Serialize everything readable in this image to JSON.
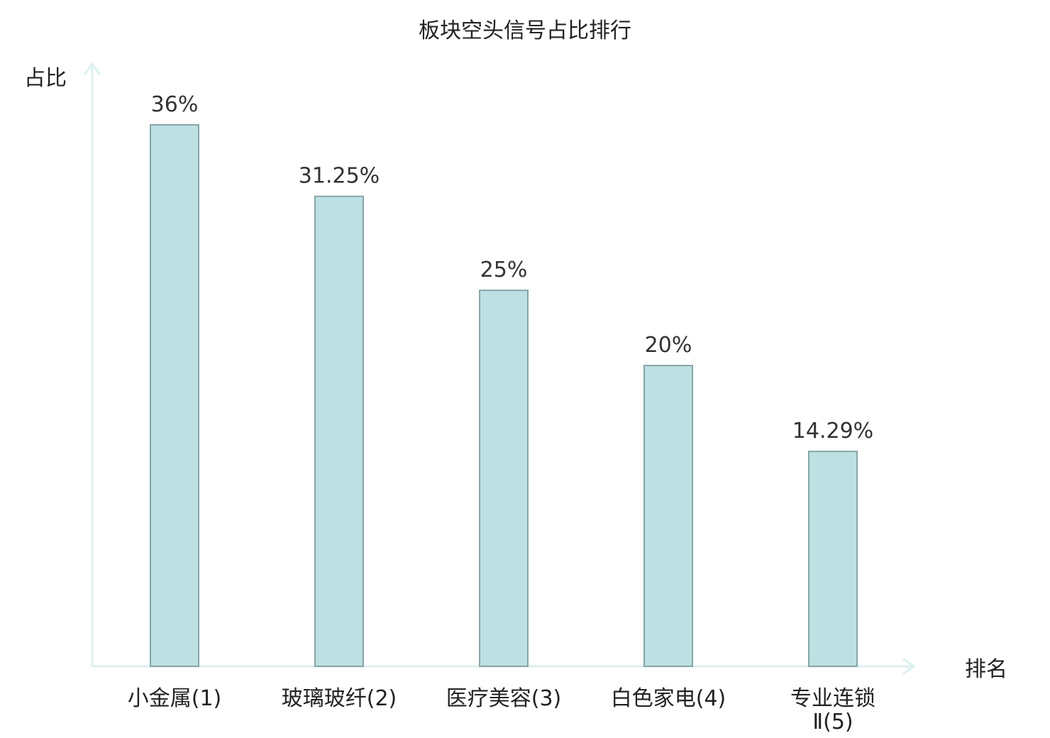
{
  "chart_data": {
    "type": "bar",
    "title": "板块空头信号占比排行",
    "ylabel": "占比",
    "xlabel": "排名",
    "unit": "%",
    "categories": [
      [
        "小金属(1)"
      ],
      [
        "玻璃玻纤(2)"
      ],
      [
        "医疗美容(3)"
      ],
      [
        "白色家电(4)"
      ],
      [
        "专业连锁",
        "Ⅱ(5)"
      ]
    ],
    "values": [
      36,
      31.25,
      25,
      20,
      14.29
    ],
    "value_labels": [
      "36%",
      "31.25%",
      "25%",
      "20%",
      "14.29%"
    ],
    "ylim": [
      0,
      36
    ],
    "grid": false,
    "colors": {
      "bar_fill": "#bde0e2",
      "bar_stroke": "#86a6a8",
      "axis": "#dcf1ef",
      "highlight_label": "#e01010",
      "text": "#222222"
    },
    "highlight_index": 0
  }
}
